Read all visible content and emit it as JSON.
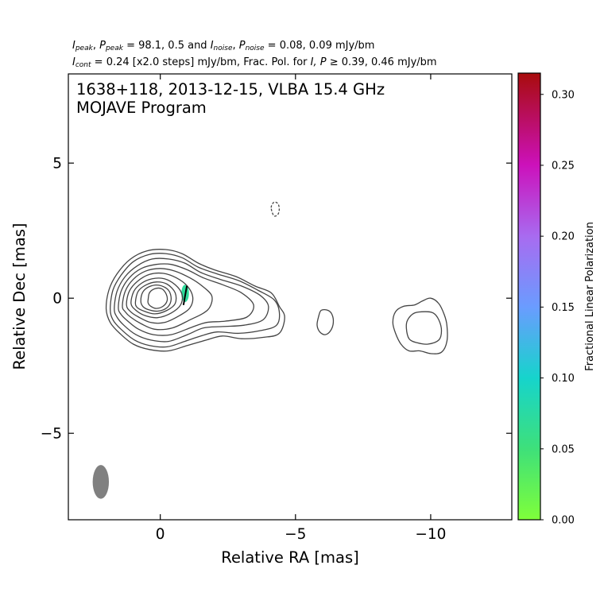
{
  "chart_data": {
    "type": "contour",
    "header": {
      "line1": {
        "i_peak_symbol": "I",
        "i_peak_sub": "peak",
        "p_peak_symbol": "P",
        "p_peak_sub": "peak",
        "peak_values": "= 98.1, 0.5 and",
        "i_noise_symbol": "I",
        "i_noise_sub": "noise",
        "p_noise_symbol": "P",
        "p_noise_sub": "noise",
        "noise_values": "= 0.08, 0.09 mJy/bm"
      },
      "line2": {
        "cont_symbol": "I",
        "cont_sub": "cont",
        "cont_text": "= 0.24 [x2.0 steps] mJy/bm, Frac. Pol. for",
        "pol_symbols": "I, P",
        "pol_text": "≥ 0.39, 0.46 mJy/bm"
      }
    },
    "title_line1": "1638+118, 2013-12-15, VLBA 15.4 GHz",
    "title_line2": "MOJAVE Program",
    "xlabel": "Relative RA [mas]",
    "ylabel": "Relative Dec [mas]",
    "xlim": [
      3.4,
      -13.0
    ],
    "ylim": [
      -8.2,
      8.3
    ],
    "xticks": [
      {
        "value": 0,
        "label": "0"
      },
      {
        "value": -5,
        "label": "−5"
      },
      {
        "value": -10,
        "label": "−10"
      }
    ],
    "yticks": [
      {
        "value": 5,
        "label": "5"
      },
      {
        "value": 0,
        "label": "0"
      },
      {
        "value": -5,
        "label": "−5"
      }
    ],
    "colorbar": {
      "label": "Fractional Linear Polarization",
      "range": [
        0.0,
        0.315
      ],
      "ticks": [
        {
          "value": 0.0,
          "label": "0.00"
        },
        {
          "value": 0.05,
          "label": "0.05"
        },
        {
          "value": 0.1,
          "label": "0.10"
        },
        {
          "value": 0.15,
          "label": "0.15"
        },
        {
          "value": 0.2,
          "label": "0.20"
        },
        {
          "value": 0.25,
          "label": "0.25"
        },
        {
          "value": 0.3,
          "label": "0.30"
        }
      ],
      "stops": [
        {
          "value": 0.0,
          "color": "#7fff3a"
        },
        {
          "value": 0.05,
          "color": "#3ee07a"
        },
        {
          "value": 0.1,
          "color": "#16d4cc"
        },
        {
          "value": 0.15,
          "color": "#6a9cff"
        },
        {
          "value": 0.2,
          "color": "#a86bf0"
        },
        {
          "value": 0.25,
          "color": "#cc11bb"
        },
        {
          "value": 0.315,
          "color": "#a80c0c"
        }
      ]
    },
    "contour_color": "#444444",
    "beam": {
      "x": 2.2,
      "y": -6.8,
      "major": 1.25,
      "minor": 0.6,
      "pa": 0,
      "color": "#808080"
    },
    "core_contours": [
      [
        [
          2.0,
          -0.4
        ],
        [
          1.9,
          0.3
        ],
        [
          1.6,
          0.9
        ],
        [
          1.1,
          1.45
        ],
        [
          0.5,
          1.75
        ],
        [
          -0.2,
          1.8
        ],
        [
          -0.8,
          1.65
        ],
        [
          -1.4,
          1.3
        ],
        [
          -2.0,
          1.05
        ],
        [
          -2.8,
          0.8
        ],
        [
          -3.5,
          0.45
        ],
        [
          -4.1,
          0.2
        ],
        [
          -4.4,
          -0.3
        ],
        [
          -4.6,
          -0.7
        ],
        [
          -4.4,
          -1.3
        ],
        [
          -3.8,
          -1.45
        ],
        [
          -3.0,
          -1.5
        ],
        [
          -2.3,
          -1.4
        ],
        [
          -1.7,
          -1.55
        ],
        [
          -1.0,
          -1.75
        ],
        [
          -0.3,
          -1.95
        ],
        [
          0.4,
          -1.9
        ],
        [
          1.0,
          -1.7
        ],
        [
          1.5,
          -1.3
        ],
        [
          1.85,
          -0.9
        ]
      ],
      [
        [
          1.85,
          -0.4
        ],
        [
          1.75,
          0.3
        ],
        [
          1.45,
          0.85
        ],
        [
          1.0,
          1.35
        ],
        [
          0.4,
          1.62
        ],
        [
          -0.2,
          1.65
        ],
        [
          -0.8,
          1.5
        ],
        [
          -1.4,
          1.15
        ],
        [
          -2.1,
          0.9
        ],
        [
          -2.9,
          0.65
        ],
        [
          -3.6,
          0.3
        ],
        [
          -4.2,
          -0.05
        ],
        [
          -4.4,
          -0.5
        ],
        [
          -4.3,
          -1.0
        ],
        [
          -3.7,
          -1.2
        ],
        [
          -2.9,
          -1.3
        ],
        [
          -2.1,
          -1.25
        ],
        [
          -1.5,
          -1.4
        ],
        [
          -0.9,
          -1.6
        ],
        [
          -0.25,
          -1.8
        ],
        [
          0.4,
          -1.75
        ],
        [
          0.95,
          -1.55
        ],
        [
          1.45,
          -1.15
        ],
        [
          1.75,
          -0.8
        ]
      ],
      [
        [
          1.7,
          -0.4
        ],
        [
          1.6,
          0.25
        ],
        [
          1.3,
          0.8
        ],
        [
          0.85,
          1.2
        ],
        [
          0.3,
          1.45
        ],
        [
          -0.3,
          1.45
        ],
        [
          -0.9,
          1.3
        ],
        [
          -1.5,
          0.95
        ],
        [
          -2.2,
          0.7
        ],
        [
          -3.0,
          0.45
        ],
        [
          -3.7,
          0.1
        ],
        [
          -4.0,
          -0.3
        ],
        [
          -3.8,
          -0.8
        ],
        [
          -3.1,
          -1.0
        ],
        [
          -2.3,
          -1.05
        ],
        [
          -1.6,
          -1.1
        ],
        [
          -1.0,
          -1.35
        ],
        [
          -0.3,
          -1.6
        ],
        [
          0.35,
          -1.55
        ],
        [
          0.9,
          -1.35
        ],
        [
          1.35,
          -1.0
        ],
        [
          1.6,
          -0.7
        ]
      ],
      [
        [
          1.55,
          -0.35
        ],
        [
          1.45,
          0.25
        ],
        [
          1.15,
          0.75
        ],
        [
          0.7,
          1.1
        ],
        [
          0.15,
          1.25
        ],
        [
          -0.4,
          1.25
        ],
        [
          -1.0,
          1.05
        ],
        [
          -1.6,
          0.75
        ],
        [
          -2.3,
          0.5
        ],
        [
          -3.0,
          0.2
        ],
        [
          -3.45,
          -0.25
        ],
        [
          -3.2,
          -0.7
        ],
        [
          -2.4,
          -0.85
        ],
        [
          -1.7,
          -0.9
        ],
        [
          -1.1,
          -1.1
        ],
        [
          -0.4,
          -1.35
        ],
        [
          0.25,
          -1.35
        ],
        [
          0.8,
          -1.15
        ],
        [
          1.2,
          -0.85
        ],
        [
          1.45,
          -0.6
        ]
      ],
      [
        [
          1.4,
          -0.3
        ],
        [
          1.3,
          0.25
        ],
        [
          1.0,
          0.7
        ],
        [
          0.55,
          1.0
        ],
        [
          0.0,
          1.1
        ],
        [
          -0.55,
          1.0
        ],
        [
          -1.1,
          0.75
        ],
        [
          -1.55,
          0.45
        ],
        [
          -1.9,
          0.1
        ],
        [
          -1.85,
          -0.3
        ],
        [
          -1.6,
          -0.55
        ],
        [
          -1.1,
          -0.8
        ],
        [
          -0.45,
          -1.1
        ],
        [
          0.2,
          -1.15
        ],
        [
          0.7,
          -0.95
        ],
        [
          1.1,
          -0.7
        ],
        [
          1.3,
          -0.5
        ]
      ],
      [
        [
          1.25,
          -0.25
        ],
        [
          1.15,
          0.25
        ],
        [
          0.85,
          0.62
        ],
        [
          0.4,
          0.88
        ],
        [
          -0.1,
          0.92
        ],
        [
          -0.6,
          0.75
        ],
        [
          -1.0,
          0.45
        ],
        [
          -1.2,
          0.05
        ],
        [
          -1.1,
          -0.35
        ],
        [
          -0.7,
          -0.65
        ],
        [
          -0.15,
          -0.9
        ],
        [
          0.35,
          -0.9
        ],
        [
          0.8,
          -0.7
        ],
        [
          1.1,
          -0.5
        ]
      ],
      [
        [
          1.08,
          -0.2
        ],
        [
          0.98,
          0.25
        ],
        [
          0.7,
          0.55
        ],
        [
          0.3,
          0.72
        ],
        [
          -0.15,
          0.72
        ],
        [
          -0.55,
          0.5
        ],
        [
          -0.8,
          0.15
        ],
        [
          -0.75,
          -0.25
        ],
        [
          -0.4,
          -0.55
        ],
        [
          0.1,
          -0.72
        ],
        [
          0.55,
          -0.65
        ],
        [
          0.9,
          -0.45
        ]
      ],
      [
        [
          0.92,
          -0.15
        ],
        [
          0.82,
          0.25
        ],
        [
          0.55,
          0.48
        ],
        [
          0.15,
          0.6
        ],
        [
          -0.25,
          0.52
        ],
        [
          -0.55,
          0.2
        ],
        [
          -0.55,
          -0.2
        ],
        [
          -0.25,
          -0.45
        ],
        [
          0.2,
          -0.58
        ],
        [
          0.6,
          -0.48
        ],
        [
          0.85,
          -0.35
        ]
      ],
      [
        [
          0.72,
          -0.1
        ],
        [
          0.65,
          0.22
        ],
        [
          0.42,
          0.42
        ],
        [
          0.05,
          0.48
        ],
        [
          -0.3,
          0.3
        ],
        [
          -0.4,
          -0.05
        ],
        [
          -0.25,
          -0.35
        ],
        [
          0.1,
          -0.48
        ],
        [
          0.45,
          -0.42
        ],
        [
          0.65,
          -0.3
        ]
      ],
      [
        [
          0.45,
          -0.05
        ],
        [
          0.4,
          0.2
        ],
        [
          0.2,
          0.35
        ],
        [
          -0.05,
          0.35
        ],
        [
          -0.22,
          0.15
        ],
        [
          -0.25,
          -0.1
        ],
        [
          -0.1,
          -0.3
        ],
        [
          0.15,
          -0.38
        ],
        [
          0.35,
          -0.3
        ],
        [
          0.45,
          -0.18
        ]
      ]
    ],
    "knot_contours": [
      [
        [
          -5.85,
          -0.7
        ],
        [
          -5.95,
          -0.45
        ],
        [
          -6.2,
          -0.45
        ],
        [
          -6.35,
          -0.6
        ],
        [
          -6.4,
          -0.9
        ],
        [
          -6.3,
          -1.2
        ],
        [
          -6.1,
          -1.35
        ],
        [
          -5.9,
          -1.25
        ],
        [
          -5.8,
          -1.0
        ]
      ]
    ],
    "outer_contours": [
      [
        [
          -8.7,
          -0.5
        ],
        [
          -9.0,
          -0.3
        ],
        [
          -9.4,
          -0.25
        ],
        [
          -9.7,
          -0.1
        ],
        [
          -10.0,
          0.0
        ],
        [
          -10.3,
          -0.2
        ],
        [
          -10.5,
          -0.6
        ],
        [
          -10.6,
          -1.0
        ],
        [
          -10.6,
          -1.6
        ],
        [
          -10.4,
          -2.0
        ],
        [
          -10.0,
          -2.05
        ],
        [
          -9.6,
          -1.95
        ],
        [
          -9.2,
          -1.95
        ],
        [
          -8.9,
          -1.7
        ],
        [
          -8.7,
          -1.3
        ],
        [
          -8.6,
          -0.9
        ]
      ],
      [
        [
          -9.15,
          -0.8
        ],
        [
          -9.4,
          -0.55
        ],
        [
          -9.8,
          -0.5
        ],
        [
          -10.1,
          -0.55
        ],
        [
          -10.3,
          -0.8
        ],
        [
          -10.4,
          -1.2
        ],
        [
          -10.3,
          -1.55
        ],
        [
          -9.9,
          -1.7
        ],
        [
          -9.5,
          -1.65
        ],
        [
          -9.2,
          -1.5
        ],
        [
          -9.1,
          -1.1
        ]
      ]
    ],
    "negative_contours": [
      [
        [
          -4.1,
          3.35
        ],
        [
          -4.2,
          3.55
        ],
        [
          -4.35,
          3.5
        ],
        [
          -4.4,
          3.3
        ],
        [
          -4.35,
          3.1
        ],
        [
          -4.2,
          3.05
        ]
      ]
    ],
    "polarization_blobs": [
      {
        "x": -0.92,
        "y": 0.18,
        "rx": 0.14,
        "ry": 0.32,
        "value": 0.07
      }
    ],
    "evpa_vectors": [
      {
        "x": -0.92,
        "y": 0.1,
        "length": 0.72,
        "angle_deg": 10
      }
    ]
  }
}
